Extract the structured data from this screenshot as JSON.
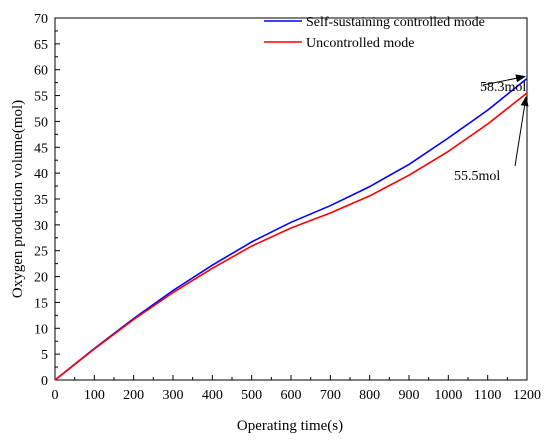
{
  "chart_data": {
    "type": "line",
    "title": "",
    "xlabel": "Operating time(s)",
    "ylabel": "Oxygen production volume(mol)",
    "xlim": [
      0,
      1200
    ],
    "ylim": [
      0,
      70
    ],
    "xticks": [
      0,
      100,
      200,
      300,
      400,
      500,
      600,
      700,
      800,
      900,
      1000,
      1100,
      1200
    ],
    "yticks": [
      0,
      5,
      10,
      15,
      20,
      25,
      30,
      35,
      40,
      45,
      50,
      55,
      60,
      65,
      70
    ],
    "grid": false,
    "legend_position": "top-right",
    "series": [
      {
        "name": "Self-sustaining controlled mode",
        "color": "#0000ff",
        "x": [
          0,
          100,
          200,
          300,
          400,
          500,
          600,
          700,
          800,
          900,
          1000,
          1100,
          1200
        ],
        "y": [
          0,
          6.1,
          11.9,
          17.3,
          22.2,
          26.7,
          30.5,
          33.7,
          37.4,
          41.7,
          46.8,
          52.2,
          58.3
        ]
      },
      {
        "name": "Uncontrolled mode",
        "color": "#ff0000",
        "x": [
          0,
          100,
          200,
          300,
          400,
          500,
          600,
          700,
          800,
          900,
          1000,
          1100,
          1200
        ],
        "y": [
          0,
          6.0,
          11.7,
          16.9,
          21.6,
          25.9,
          29.4,
          32.3,
          35.6,
          39.6,
          44.2,
          49.5,
          55.5
        ]
      }
    ],
    "annotations": [
      {
        "text": "58.3mol",
        "point": [
          1200,
          58.3
        ]
      },
      {
        "text": "55.5mol",
        "point": [
          1200,
          55.5
        ]
      }
    ]
  }
}
